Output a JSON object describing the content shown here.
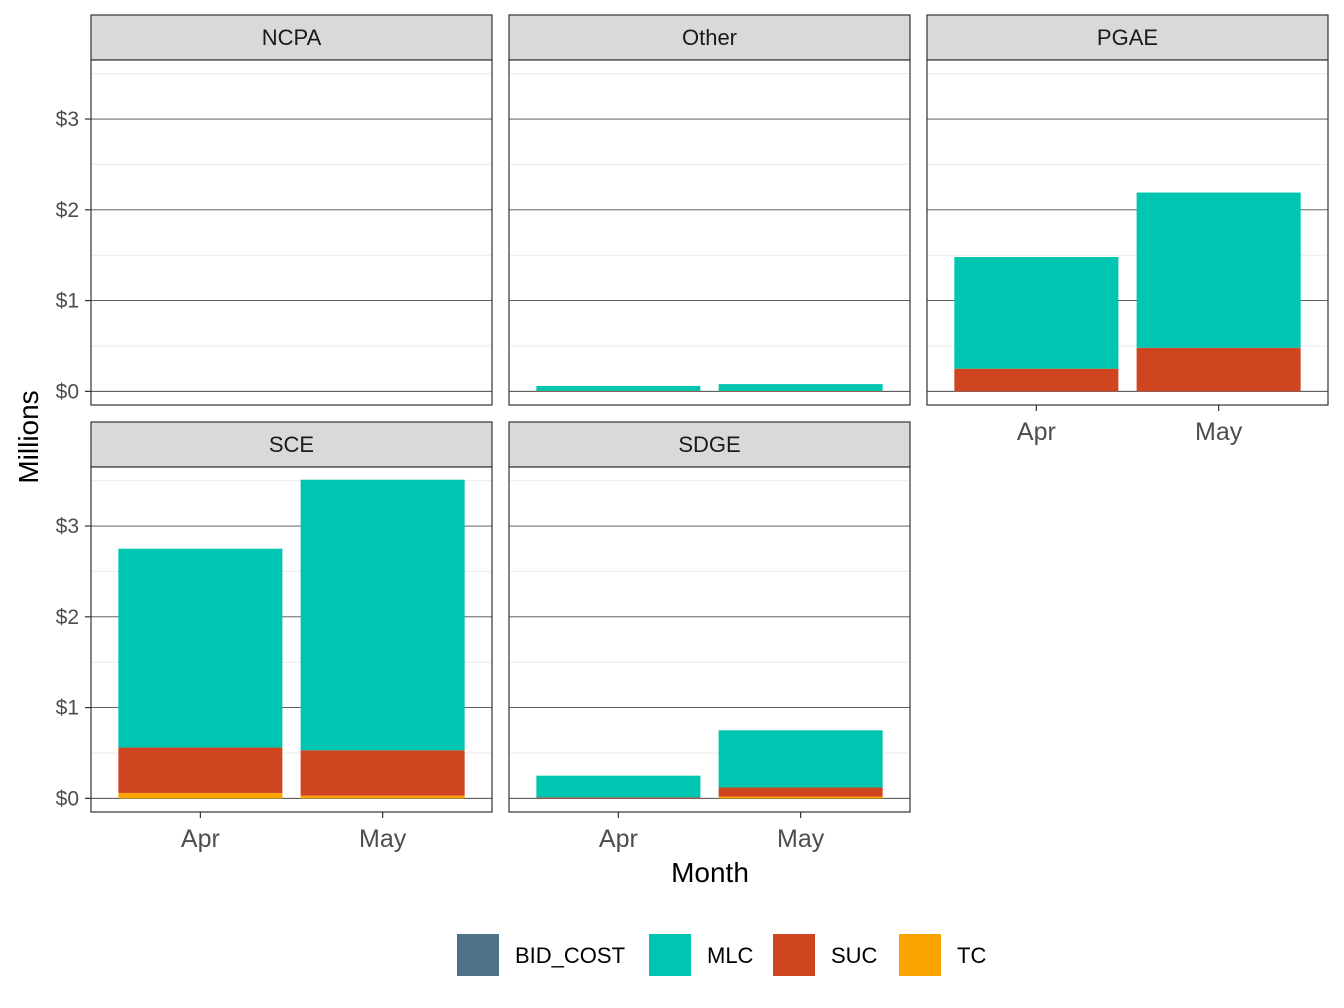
{
  "chart_data": {
    "type": "bar",
    "stacked": true,
    "faceted": true,
    "xlabel": "Month",
    "ylabel": "Millions",
    "categories": [
      "Apr",
      "May"
    ],
    "ylim": [
      -0.15,
      3.65
    ],
    "y_ticks": [
      0,
      1,
      2,
      3
    ],
    "y_tick_labels": [
      "$0",
      "$1",
      "$2",
      "$3"
    ],
    "grid": true,
    "legend_position": "bottom",
    "series_order": [
      "TC",
      "SUC",
      "MLC",
      "BID_COST"
    ],
    "legend": [
      {
        "name": "BID_COST",
        "color": "#4e7388"
      },
      {
        "name": "MLC",
        "color": "#00c5b0"
      },
      {
        "name": "SUC",
        "color": "#cf4520"
      },
      {
        "name": "TC",
        "color": "#fba400"
      }
    ],
    "panels": [
      {
        "title": "NCPA",
        "series": {
          "TC": [
            0,
            0
          ],
          "SUC": [
            0,
            0
          ],
          "MLC": [
            0,
            0
          ],
          "BID_COST": [
            0,
            0
          ]
        }
      },
      {
        "title": "Other",
        "series": {
          "TC": [
            0,
            0
          ],
          "SUC": [
            0.005,
            0.005
          ],
          "MLC": [
            0.055,
            0.075
          ],
          "BID_COST": [
            0,
            0
          ]
        }
      },
      {
        "title": "PGAE",
        "series": {
          "TC": [
            0,
            0
          ],
          "SUC": [
            0.25,
            0.48
          ],
          "MLC": [
            1.23,
            1.71
          ],
          "BID_COST": [
            0,
            0
          ]
        }
      },
      {
        "title": "SCE",
        "series": {
          "TC": [
            0.06,
            0.03
          ],
          "SUC": [
            0.5,
            0.5
          ],
          "MLC": [
            2.19,
            2.98
          ],
          "BID_COST": [
            0,
            0
          ]
        }
      },
      {
        "title": "SDGE",
        "series": {
          "TC": [
            0,
            0.02
          ],
          "SUC": [
            0.01,
            0.1
          ],
          "MLC": [
            0.24,
            0.63
          ],
          "BID_COST": [
            0,
            0
          ]
        }
      }
    ]
  }
}
